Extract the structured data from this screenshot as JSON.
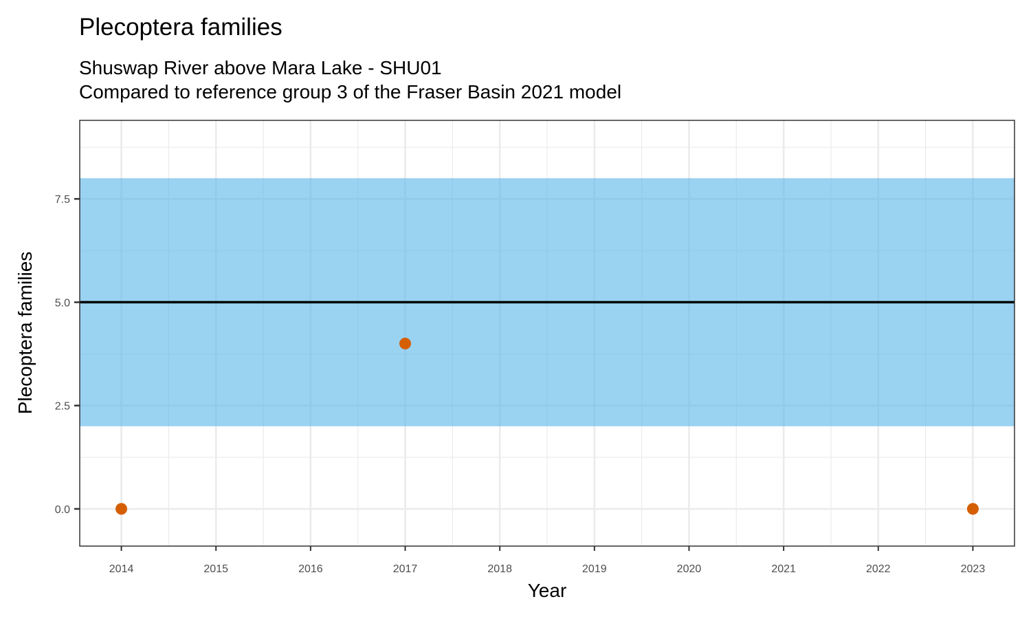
{
  "chart_data": {
    "type": "scatter",
    "title": "Plecoptera families",
    "subtitle_lines": [
      "Shuswap River above Mara Lake - SHU01",
      "Compared to reference group 3 of the Fraser Basin 2021 model"
    ],
    "xlabel": "Year",
    "ylabel": "Plecoptera families",
    "xlim": [
      2013.56,
      2023.44
    ],
    "ylim": [
      -0.9,
      9.4
    ],
    "x_ticks": [
      2014,
      2015,
      2016,
      2017,
      2018,
      2019,
      2020,
      2021,
      2022,
      2023
    ],
    "y_ticks": [
      0,
      2.5,
      5,
      7.5
    ],
    "x_tick_labels": [
      "2014",
      "2015",
      "2016",
      "2017",
      "2018",
      "2019",
      "2020",
      "2021",
      "2022",
      "2023"
    ],
    "y_tick_labels": [
      "0.0",
      "2.5",
      "5.0",
      "7.5"
    ],
    "grid": true,
    "series": [
      {
        "x": [
          2014,
          2017,
          2023
        ],
        "y": [
          0,
          4,
          0
        ],
        "color": "#D55E00"
      }
    ],
    "reference": {
      "band": [
        2,
        8
      ],
      "band_color": "#56B4E9",
      "line": 5,
      "line_color": "#000000"
    }
  }
}
